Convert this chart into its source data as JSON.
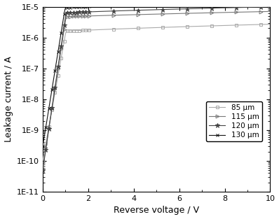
{
  "title": "",
  "xlabel": "Reverse voltage / V",
  "ylabel": "Leakage current / A",
  "xlim": [
    0,
    10
  ],
  "ylim_log": [
    -11,
    -5
  ],
  "series": [
    {
      "label": "85 μm",
      "color": "#aaaaaa",
      "marker": "s",
      "markersize": 3.5,
      "I0": 1e-10,
      "n": 9.5,
      "Isat": 1.5e-06,
      "sat_slope": 1.2e-07,
      "Vt": 1.2
    },
    {
      "label": "115 μm",
      "color": "#777777",
      "marker": ">",
      "markersize": 3.5,
      "I0": 6e-11,
      "n": 11.0,
      "Isat": 4.5e-06,
      "sat_slope": 2.5e-07,
      "Vt": 0.9
    },
    {
      "label": "120 μm",
      "color": "#444444",
      "marker": "*",
      "markersize": 4.5,
      "I0": 5e-11,
      "n": 11.5,
      "Isat": 6e-06,
      "sat_slope": 4e-07,
      "Vt": 0.85
    },
    {
      "label": "130 μm",
      "color": "#111111",
      "marker": "x",
      "markersize": 3.5,
      "I0": 3e-10,
      "n": 10.5,
      "Isat": 8.5e-06,
      "sat_slope": 8e-07,
      "Vt": 0.75
    }
  ],
  "legend_loc": "center right",
  "linewidth": 0.8,
  "markevery_dense": 8
}
